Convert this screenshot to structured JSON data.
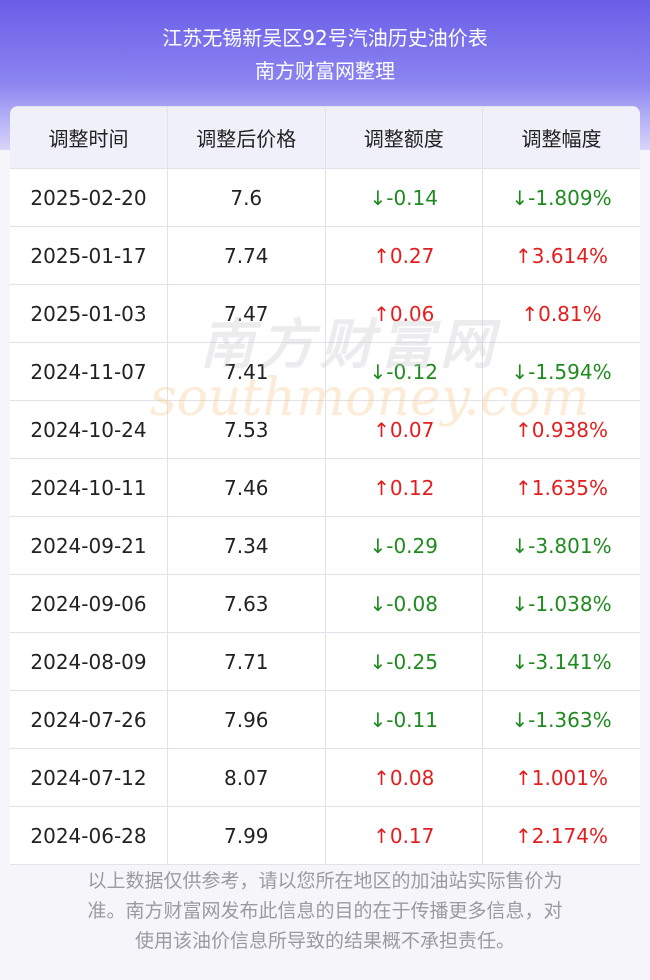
{
  "header": {
    "title": "江苏无锡新吴区92号汽油历史油价表",
    "subtitle": "南方财富网整理"
  },
  "table": {
    "columns": [
      "调整时间",
      "调整后价格",
      "调整额度",
      "调整幅度"
    ],
    "rows": [
      [
        "2025-02-20",
        "7.6",
        "↓-0.14",
        "↓-1.809%"
      ],
      [
        "2025-01-17",
        "7.74",
        "↑0.27",
        "↑3.614%"
      ],
      [
        "2025-01-03",
        "7.47",
        "↑0.06",
        "↑0.81%"
      ],
      [
        "2024-11-07",
        "7.41",
        "↓-0.12",
        "↓-1.594%"
      ],
      [
        "2024-10-24",
        "7.53",
        "↑0.07",
        "↑0.938%"
      ],
      [
        "2024-10-11",
        "7.46",
        "↑0.12",
        "↑1.635%"
      ],
      [
        "2024-09-21",
        "7.34",
        "↓-0.29",
        "↓-3.801%"
      ],
      [
        "2024-09-06",
        "7.63",
        "↓-0.08",
        "↓-1.038%"
      ],
      [
        "2024-08-09",
        "7.71",
        "↓-0.25",
        "↓-3.141%"
      ],
      [
        "2024-07-26",
        "7.96",
        "↓-0.11",
        "↓-1.363%"
      ],
      [
        "2024-07-12",
        "8.07",
        "↑0.08",
        "↑1.001%"
      ],
      [
        "2024-06-28",
        "7.99",
        "↑0.17",
        "↑2.174%"
      ]
    ]
  },
  "watermark": {
    "text": "南方财富网",
    "url": "southmoney.com"
  },
  "footer": {
    "note": "以上数据仅供参考，请以您所在地区的加油站实际售价为准。南方财富网发布此信息的目的在于传播更多信息，对使用该油价信息所导致的结果概不承担责任。"
  }
}
